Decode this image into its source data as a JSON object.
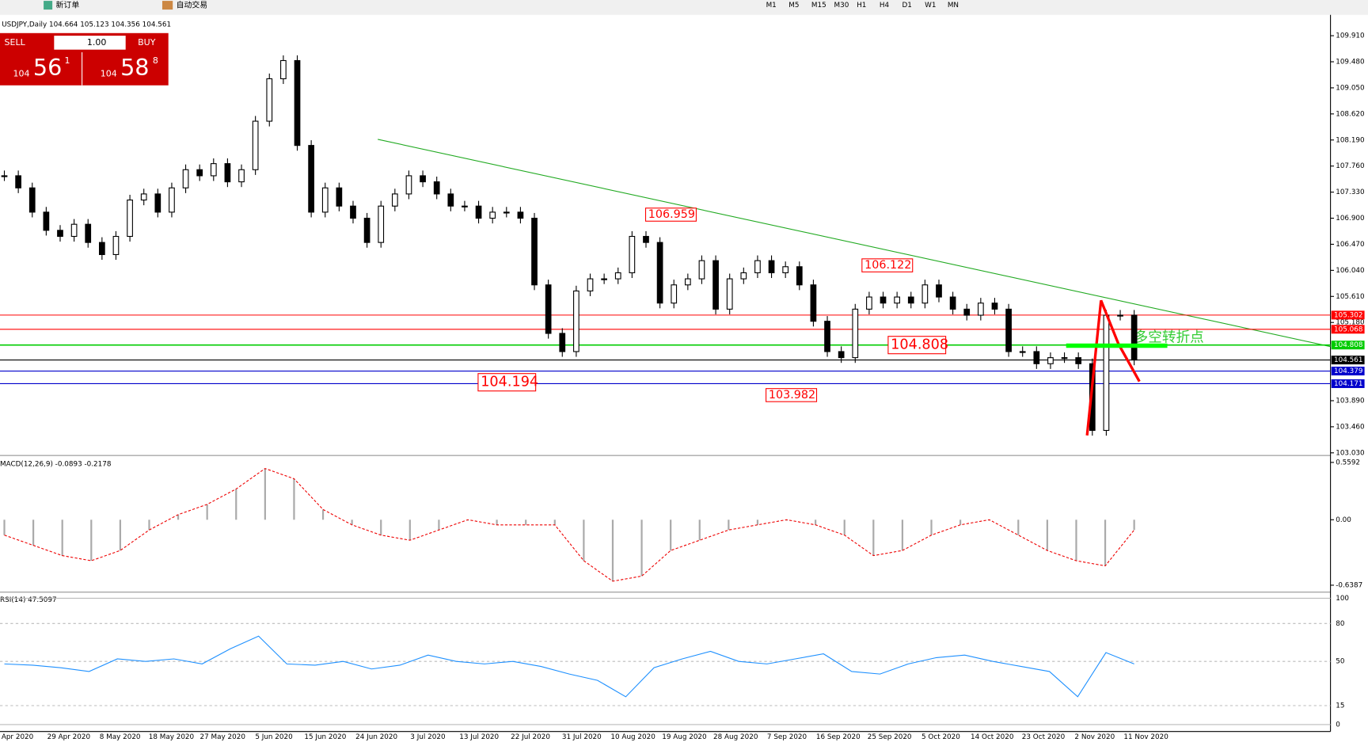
{
  "toolbar": {
    "new_order": "新订单",
    "auto_trading": "自动交易",
    "timeframes": [
      "M1",
      "M5",
      "M15",
      "M30",
      "H1",
      "H4",
      "D1",
      "W1",
      "MN"
    ]
  },
  "chart_header": "USDJPY,Daily  104.664 105.123 104.356 104.561",
  "trade_panel": {
    "sell": "SELL",
    "lot": "1.00",
    "buy": "BUY",
    "bid_big": "104",
    "bid_digits": "56",
    "bid_small": "1",
    "ask_big": "104",
    "ask_digits": "58",
    "ask_small": "8"
  },
  "price_axis": {
    "ticks": [
      {
        "value": 109.91,
        "label": "109.910"
      },
      {
        "value": 109.48,
        "label": "109.480"
      },
      {
        "value": 109.05,
        "label": "109.050"
      },
      {
        "value": 108.62,
        "label": "108.620"
      },
      {
        "value": 108.19,
        "label": "108.190"
      },
      {
        "value": 107.76,
        "label": "107.760"
      },
      {
        "value": 107.33,
        "label": "107.330"
      },
      {
        "value": 106.9,
        "label": "106.900"
      },
      {
        "value": 106.47,
        "label": "106.470"
      },
      {
        "value": 106.04,
        "label": "106.040"
      },
      {
        "value": 105.61,
        "label": "105.610"
      },
      {
        "value": 105.18,
        "label": "105.180"
      },
      {
        "value": 103.89,
        "label": "103.890"
      },
      {
        "value": 103.46,
        "label": "103.460"
      },
      {
        "value": 103.03,
        "label": "103.030"
      }
    ]
  },
  "levels": [
    {
      "value": 105.302,
      "color": "#ff0000"
    },
    {
      "value": 105.068,
      "color": "#ff0000"
    },
    {
      "value": 104.808,
      "color": "#00cc00"
    },
    {
      "value": 104.561,
      "color": "#000000"
    },
    {
      "value": 104.379,
      "color": "#0000cc"
    },
    {
      "value": 104.171,
      "color": "#0000cc"
    }
  ],
  "annotations": [
    106.959,
    106.122,
    104.808,
    104.194,
    103.982
  ],
  "note": "多空转折点",
  "closes": [
    107.6,
    107.4,
    107.0,
    106.7,
    106.6,
    106.8,
    106.5,
    106.3,
    106.6,
    107.2,
    107.3,
    107.0,
    107.4,
    107.7,
    107.6,
    107.8,
    107.5,
    107.7,
    108.5,
    109.2,
    109.5,
    108.1,
    107.0,
    107.4,
    107.1,
    106.9,
    106.5,
    107.1,
    107.3,
    107.6,
    107.5,
    107.3,
    107.1,
    107.1,
    106.9,
    107.0,
    107.0,
    106.9,
    105.8,
    105.0,
    104.7,
    105.7,
    105.9,
    105.9,
    106.0,
    106.6,
    106.5,
    105.5,
    105.8,
    105.9,
    106.2,
    105.4,
    105.9,
    106.0,
    106.2,
    106.0,
    106.1,
    105.8,
    105.2,
    104.7,
    104.6,
    105.4,
    105.6,
    105.5,
    105.6,
    105.5,
    105.8,
    105.6,
    105.4,
    105.3,
    105.5,
    105.4,
    104.7,
    104.7,
    104.5,
    104.6,
    104.6,
    104.5,
    103.4,
    105.3,
    105.3,
    104.561
  ],
  "dates": [
    "Apr 2020",
    "29 Apr 2020",
    "8 May 2020",
    "18 May 2020",
    "27 May 2020",
    "5 Jun 2020",
    "15 Jun 2020",
    "24 Jun 2020",
    "3 Jul 2020",
    "13 Jul 2020",
    "22 Jul 2020",
    "31 Jul 2020",
    "10 Aug 2020",
    "19 Aug 2020",
    "28 Aug 2020",
    "7 Sep 2020",
    "16 Sep 2020",
    "25 Sep 2020",
    "5 Oct 2020",
    "14 Oct 2020",
    "23 Oct 2020",
    "2 Nov 2020",
    "11 Nov 2020"
  ],
  "macd": {
    "label": "MACD(12,26,9) -0.0893 -0.2178",
    "ticks": [
      0.5592,
      {
        "value": 0,
        "label": "0.00"
      },
      -0.6387
    ],
    "values": [
      -0.15,
      -0.25,
      -0.35,
      -0.4,
      -0.3,
      -0.1,
      0.05,
      0.15,
      0.3,
      0.5,
      0.4,
      0.1,
      -0.05,
      -0.15,
      -0.2,
      -0.1,
      0.0,
      -0.05,
      -0.05,
      -0.05,
      -0.4,
      -0.6,
      -0.55,
      -0.3,
      -0.2,
      -0.1,
      -0.05,
      0.0,
      -0.05,
      -0.15,
      -0.35,
      -0.3,
      -0.15,
      -0.05,
      0.0,
      -0.15,
      -0.3,
      -0.4,
      -0.45,
      -0.1
    ]
  },
  "rsi": {
    "label": "RSI(14) 47.5097",
    "ticks": [
      100,
      80,
      50,
      15,
      0
    ],
    "values": [
      48,
      47,
      45,
      42,
      52,
      50,
      52,
      48,
      60,
      70,
      48,
      47,
      50,
      44,
      47,
      55,
      50,
      48,
      50,
      46,
      40,
      35,
      22,
      45,
      52,
      58,
      50,
      48,
      52,
      56,
      42,
      40,
      48,
      53,
      55,
      50,
      46,
      42,
      22,
      57,
      48
    ]
  }
}
